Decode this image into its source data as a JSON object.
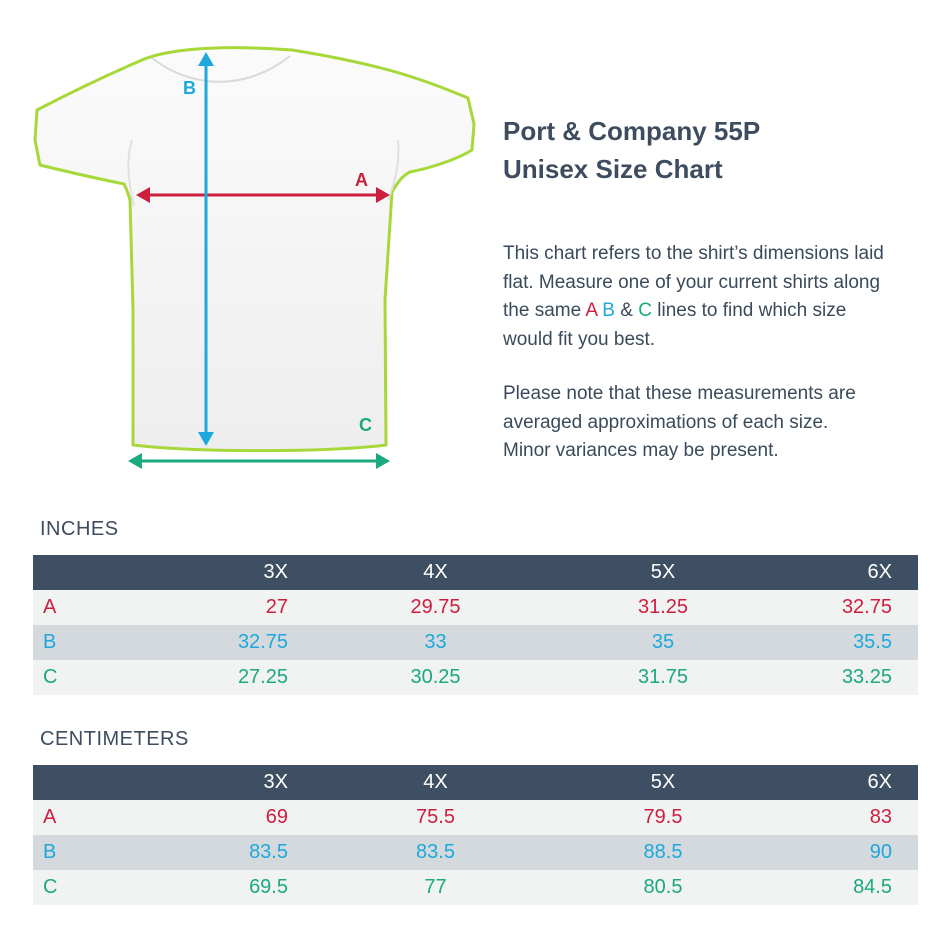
{
  "title": {
    "line1": "Port & Company 55P",
    "line2": "Unisex Size Chart"
  },
  "intro": {
    "line1": "This chart refers to the shirt’s dimensions laid",
    "line2": "flat. Measure one of your current shirts along",
    "line3_pre": "the same ",
    "line3_a": "A",
    "line3_b": "B",
    "line3_amp": "&",
    "line3_c": "C",
    "line3_post": " lines to find which size",
    "line4": "would fit you best."
  },
  "note": {
    "line1": "Please note that these measurements are",
    "line2": "averaged approximations of each size.",
    "line3": "Minor variances may be present."
  },
  "diagram": {
    "label_a": "A",
    "label_b": "B",
    "label_c": "C"
  },
  "colors": {
    "a": "#cc1f3e",
    "b": "#1ea8dc",
    "c": "#1aa980",
    "header": "#3f4f63",
    "outline": "#a6d83a"
  },
  "inches": {
    "label": "INCHES",
    "sizes": [
      "3X",
      "4X",
      "5X",
      "6X"
    ],
    "rows": [
      {
        "key": "A",
        "values": [
          "27",
          "29.75",
          "31.25",
          "32.75"
        ]
      },
      {
        "key": "B",
        "values": [
          "32.75",
          "33",
          "35",
          "35.5"
        ]
      },
      {
        "key": "C",
        "values": [
          "27.25",
          "30.25",
          "31.75",
          "33.25"
        ]
      }
    ]
  },
  "centimeters": {
    "label": "CENTIMETERS",
    "sizes": [
      "3X",
      "4X",
      "5X",
      "6X"
    ],
    "rows": [
      {
        "key": "A",
        "values": [
          "69",
          "75.5",
          "79.5",
          "83"
        ]
      },
      {
        "key": "B",
        "values": [
          "83.5",
          "83.5",
          "88.5",
          "90"
        ]
      },
      {
        "key": "C",
        "values": [
          "69.5",
          "77",
          "80.5",
          "84.5"
        ]
      }
    ]
  }
}
